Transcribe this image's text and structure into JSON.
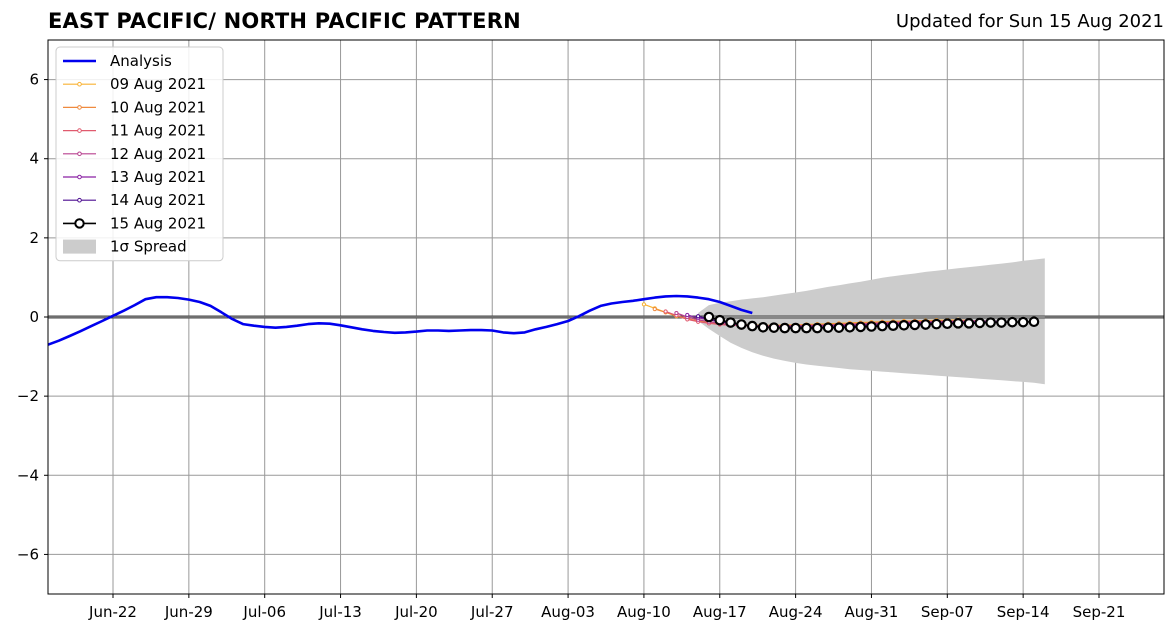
{
  "header": {
    "title": "EAST PACIFIC/ NORTH PACIFIC PATTERN",
    "updated": "Updated for Sun 15 Aug 2021"
  },
  "chart_data": {
    "type": "line",
    "title": "EAST PACIFIC/ NORTH PACIFIC PATTERN",
    "xlabel": "",
    "ylabel": "",
    "xlim": [
      "2021-06-16",
      "2021-09-27"
    ],
    "ylim": [
      -7,
      7
    ],
    "x_ticks": [
      "2021-06-22",
      "2021-06-29",
      "2021-07-06",
      "2021-07-13",
      "2021-07-20",
      "2021-07-27",
      "2021-08-03",
      "2021-08-10",
      "2021-08-17",
      "2021-08-24",
      "2021-08-31",
      "2021-09-07",
      "2021-09-14",
      "2021-09-21"
    ],
    "x_tick_labels": [
      "Jun-22",
      "Jun-29",
      "Jul-06",
      "Jul-13",
      "Jul-20",
      "Jul-27",
      "Aug-03",
      "Aug-10",
      "Aug-17",
      "Aug-24",
      "Aug-31",
      "Sep-07",
      "Sep-14",
      "Sep-21"
    ],
    "y_ticks": [
      -6,
      -4,
      -2,
      0,
      2,
      4,
      6
    ],
    "y_tick_labels": [
      "−6",
      "−4",
      "−2",
      "0",
      "2",
      "4",
      "6"
    ],
    "grid": true,
    "zero_line": true,
    "legend_position": "top-left",
    "analysis": {
      "name": "Analysis",
      "color": "#0000ee",
      "start": "2021-06-16",
      "values": [
        -0.7,
        -0.6,
        -0.48,
        -0.36,
        -0.23,
        -0.1,
        0.03,
        0.16,
        0.3,
        0.45,
        0.5,
        0.5,
        0.48,
        0.44,
        0.38,
        0.28,
        0.12,
        -0.05,
        -0.18,
        -0.22,
        -0.25,
        -0.27,
        -0.25,
        -0.22,
        -0.18,
        -0.16,
        -0.17,
        -0.21,
        -0.26,
        -0.31,
        -0.35,
        -0.38,
        -0.4,
        -0.39,
        -0.37,
        -0.34,
        -0.34,
        -0.35,
        -0.34,
        -0.33,
        -0.33,
        -0.34,
        -0.39,
        -0.41,
        -0.39,
        -0.31,
        -0.25,
        -0.18,
        -0.1,
        0.02,
        0.16,
        0.28,
        0.34,
        0.38,
        0.41,
        0.45,
        0.49,
        0.52,
        0.53,
        0.52,
        0.49,
        0.45,
        0.38,
        0.28,
        0.18,
        0.1
      ]
    },
    "forecasts": [
      {
        "name": "09 Aug 2021",
        "color": "#f9b233",
        "marker": "dot",
        "start": "2021-08-10",
        "values": [
          0.32,
          0.22,
          0.12,
          0.02,
          -0.05,
          -0.1,
          -0.13,
          -0.16,
          -0.18,
          -0.19,
          -0.2,
          -0.21,
          -0.21,
          -0.2,
          -0.2,
          -0.19,
          -0.18,
          -0.17,
          -0.16,
          -0.15,
          -0.14,
          -0.13,
          -0.12,
          -0.11,
          -0.1,
          -0.1,
          -0.09,
          -0.08,
          -0.08,
          -0.07
        ]
      },
      {
        "name": "10 Aug 2021",
        "color": "#ef8a3f",
        "marker": "dot",
        "start": "2021-08-11",
        "values": [
          0.2,
          0.12,
          0.04,
          -0.04,
          -0.1,
          -0.15,
          -0.18,
          -0.2,
          -0.21,
          -0.22,
          -0.22,
          -0.22,
          -0.21,
          -0.21,
          -0.2,
          -0.19,
          -0.18,
          -0.17,
          -0.16,
          -0.15,
          -0.14,
          -0.13,
          -0.12,
          -0.11,
          -0.1,
          -0.1,
          -0.09,
          -0.09,
          -0.08,
          -0.08
        ]
      },
      {
        "name": "11 Aug 2021",
        "color": "#e05a6e",
        "marker": "dot",
        "start": "2021-08-12",
        "values": [
          0.14,
          0.04,
          -0.06,
          -0.12,
          -0.16,
          -0.19,
          -0.21,
          -0.22,
          -0.23,
          -0.23,
          -0.23,
          -0.22,
          -0.22,
          -0.21,
          -0.21,
          -0.2,
          -0.19,
          -0.18,
          -0.17,
          -0.16,
          -0.15,
          -0.14,
          -0.13,
          -0.12,
          -0.12,
          -0.11,
          -0.11,
          -0.1,
          -0.1,
          -0.09
        ]
      },
      {
        "name": "12 Aug 2021",
        "color": "#b8408f",
        "marker": "dot",
        "start": "2021-08-13",
        "values": [
          0.1,
          0.0,
          -0.07,
          -0.12,
          -0.16,
          -0.19,
          -0.21,
          -0.22,
          -0.23,
          -0.23,
          -0.23,
          -0.22,
          -0.22,
          -0.21,
          -0.21,
          -0.2,
          -0.19,
          -0.18,
          -0.17,
          -0.16,
          -0.15,
          -0.14,
          -0.14,
          -0.13,
          -0.12,
          -0.12,
          -0.11,
          -0.11,
          -0.1,
          -0.1
        ]
      },
      {
        "name": "13 Aug 2021",
        "color": "#8a22a4",
        "marker": "dot",
        "start": "2021-08-14",
        "values": [
          0.05,
          -0.02,
          -0.07,
          -0.12,
          -0.16,
          -0.19,
          -0.21,
          -0.23,
          -0.24,
          -0.24,
          -0.24,
          -0.24,
          -0.23,
          -0.23,
          -0.22,
          -0.21,
          -0.2,
          -0.19,
          -0.18,
          -0.17,
          -0.16,
          -0.15,
          -0.15,
          -0.14,
          -0.13,
          -0.13,
          -0.12,
          -0.12,
          -0.11,
          -0.11
        ]
      },
      {
        "name": "14 Aug 2021",
        "color": "#4b0c90",
        "marker": "dot",
        "start": "2021-08-15",
        "values": [
          0.02,
          -0.05,
          -0.11,
          -0.16,
          -0.2,
          -0.23,
          -0.25,
          -0.26,
          -0.27,
          -0.27,
          -0.27,
          -0.26,
          -0.26,
          -0.25,
          -0.24,
          -0.23,
          -0.22,
          -0.21,
          -0.2,
          -0.19,
          -0.18,
          -0.17,
          -0.16,
          -0.16,
          -0.15,
          -0.14,
          -0.14,
          -0.13,
          -0.13,
          -0.12
        ]
      },
      {
        "name": "15 Aug 2021",
        "color": "#000000",
        "marker": "circle",
        "start": "2021-08-16",
        "values": [
          0.0,
          -0.08,
          -0.14,
          -0.19,
          -0.23,
          -0.26,
          -0.27,
          -0.28,
          -0.28,
          -0.28,
          -0.28,
          -0.27,
          -0.27,
          -0.26,
          -0.25,
          -0.24,
          -0.23,
          -0.22,
          -0.21,
          -0.2,
          -0.19,
          -0.18,
          -0.17,
          -0.16,
          -0.16,
          -0.15,
          -0.14,
          -0.14,
          -0.13,
          -0.13,
          -0.12
        ]
      }
    ],
    "spread": {
      "name": "1σ Spread",
      "color": "#cccccc",
      "start": "2021-08-15",
      "upper": [
        0.1,
        0.3,
        0.36,
        0.4,
        0.44,
        0.47,
        0.5,
        0.54,
        0.58,
        0.62,
        0.66,
        0.71,
        0.76,
        0.8,
        0.85,
        0.89,
        0.94,
        0.99,
        1.03,
        1.07,
        1.1,
        1.14,
        1.17,
        1.2,
        1.23,
        1.26,
        1.29,
        1.32,
        1.35,
        1.38,
        1.42,
        1.45,
        1.48
      ],
      "lower": [
        -0.1,
        -0.3,
        -0.48,
        -0.65,
        -0.78,
        -0.89,
        -0.98,
        -1.05,
        -1.11,
        -1.16,
        -1.2,
        -1.23,
        -1.26,
        -1.29,
        -1.32,
        -1.34,
        -1.36,
        -1.38,
        -1.4,
        -1.42,
        -1.44,
        -1.46,
        -1.48,
        -1.5,
        -1.52,
        -1.54,
        -1.56,
        -1.58,
        -1.6,
        -1.62,
        -1.64,
        -1.66,
        -1.7
      ]
    }
  }
}
